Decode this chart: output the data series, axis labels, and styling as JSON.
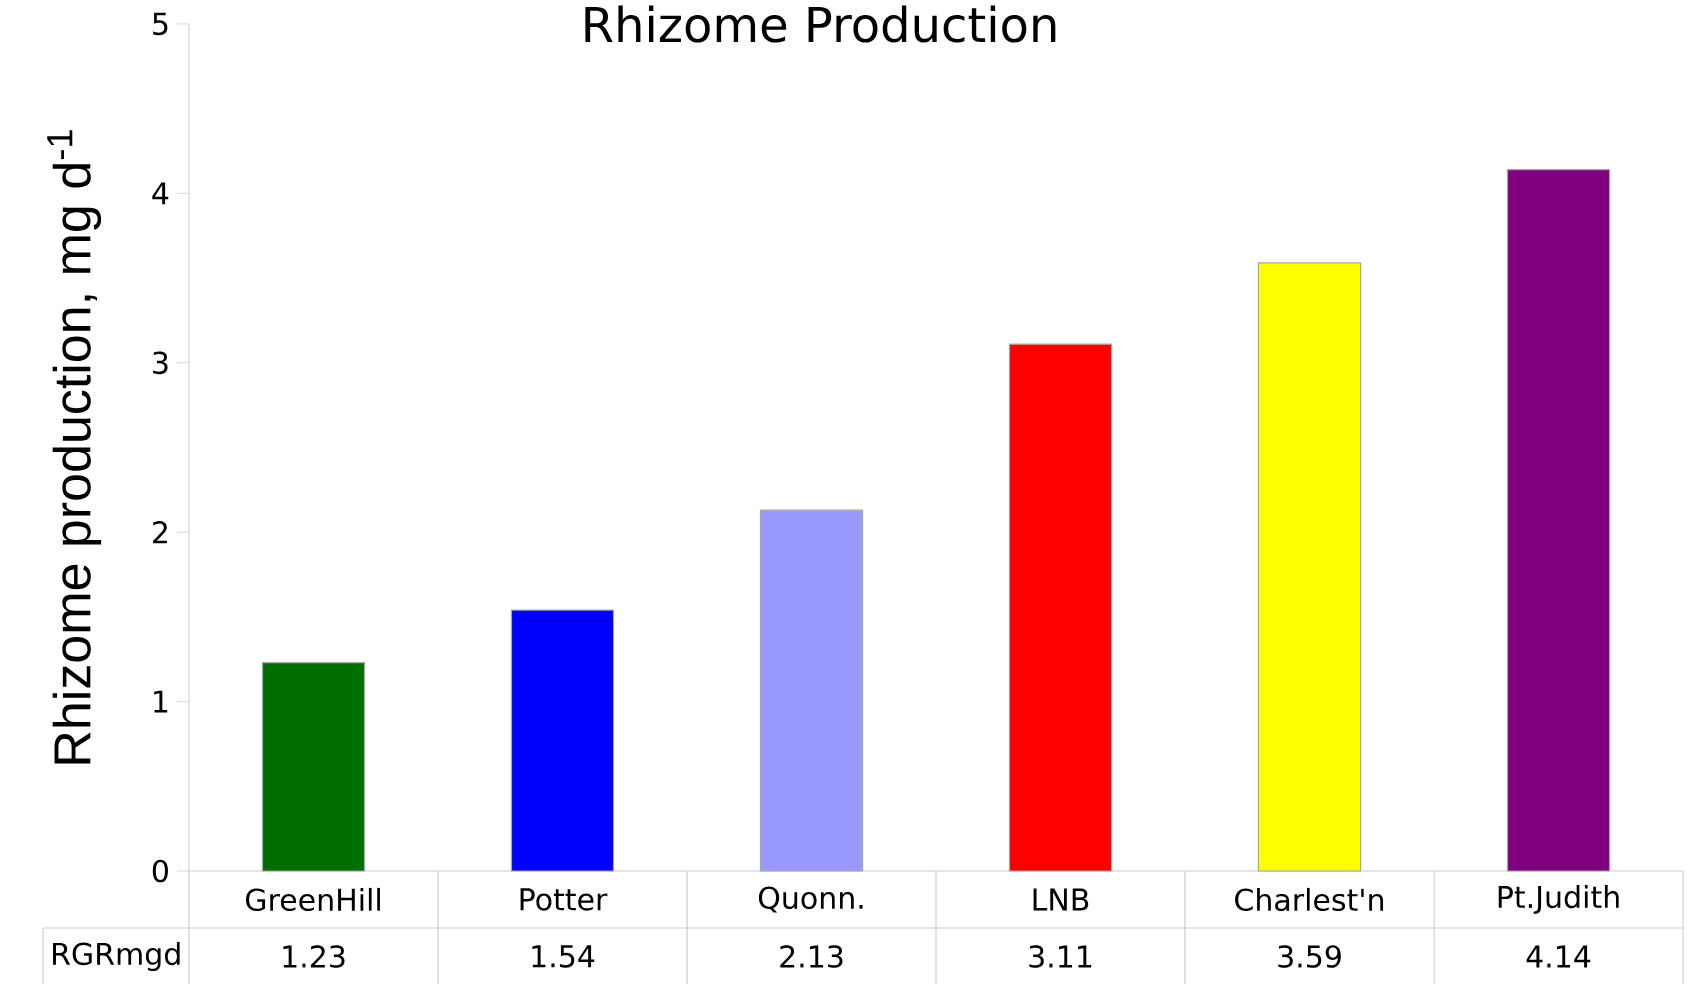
{
  "chart_data": {
    "type": "bar",
    "title": "Rhizome Production",
    "ylabel": "Rhizome production, mg d$^{-1}$",
    "categories": [
      "GreenHill",
      "Potter",
      "Quonn.",
      "LNB",
      "Charlest'n",
      "Pt.Judith"
    ],
    "series": [
      {
        "name": "RGRmgd",
        "colors": [
          "#006f00",
          "#0000ff",
          "#9999ff",
          "#ff0000",
          "#ffff00",
          "#7f007f"
        ],
        "values": [
          1.23,
          1.54,
          2.13,
          3.11,
          3.59,
          4.14
        ]
      }
    ],
    "ylim": [
      0,
      5
    ],
    "yticks": [
      0,
      1,
      2,
      3,
      4,
      5
    ],
    "grid": false,
    "data_labels": true
  }
}
